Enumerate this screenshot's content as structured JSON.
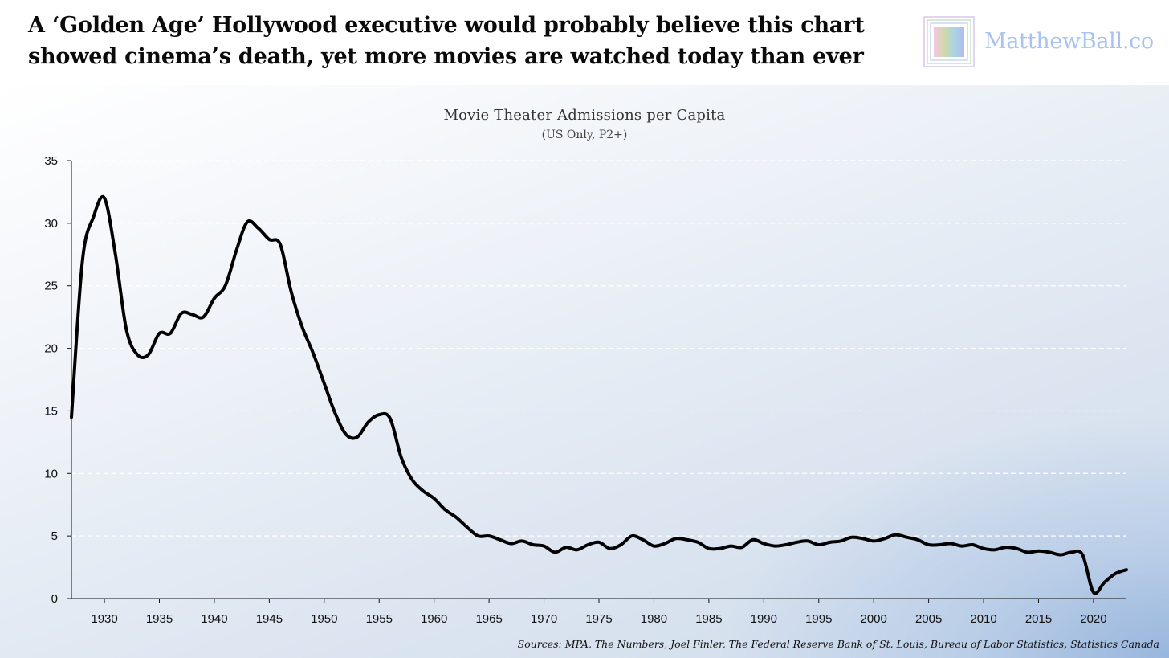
{
  "headline": {
    "line1": "A ‘Golden Age’ Hollywood executive would probably believe this chart",
    "line2": "showed cinema’s death, yet more movies are watched today than ever"
  },
  "brand": {
    "name": "MatthewBall.co",
    "color": "#aac2ee"
  },
  "sources": "Sources: MPA, The Numbers, Joel Finler, The Federal Reserve Bank of St. Louis, Bureau of Labor Statistics, Statistics Canada",
  "chart_data": {
    "type": "line",
    "title": "Movie Theater Admissions per Capita",
    "subtitle": "(US Only, P2+)",
    "xlabel": "",
    "ylabel": "",
    "xlim": [
      1927,
      2023
    ],
    "ylim": [
      0,
      35
    ],
    "x_ticks": [
      1930,
      1935,
      1940,
      1945,
      1950,
      1955,
      1960,
      1965,
      1970,
      1975,
      1980,
      1985,
      1990,
      1995,
      2000,
      2005,
      2010,
      2015,
      2020
    ],
    "y_ticks": [
      0,
      5,
      10,
      15,
      20,
      25,
      30,
      35
    ],
    "grid": "horizontal dashed",
    "line_color": "#000000",
    "series": [
      {
        "x": [
          1927,
          1928,
          1929,
          1930,
          1931,
          1932,
          1933,
          1934,
          1935,
          1936,
          1937,
          1938,
          1939,
          1940,
          1941,
          1942,
          1943,
          1944,
          1945,
          1946,
          1947,
          1948,
          1949,
          1950,
          1951,
          1952,
          1953,
          1954,
          1955,
          1956,
          1957,
          1958,
          1959,
          1960,
          1961,
          1962,
          1963,
          1964,
          1965,
          1966,
          1967,
          1968,
          1969,
          1970,
          1971,
          1972,
          1973,
          1974,
          1975,
          1976,
          1977,
          1978,
          1979,
          1980,
          1981,
          1982,
          1983,
          1984,
          1985,
          1986,
          1987,
          1988,
          1989,
          1990,
          1991,
          1992,
          1993,
          1994,
          1995,
          1996,
          1997,
          1998,
          1999,
          2000,
          2001,
          2002,
          2003,
          2004,
          2005,
          2006,
          2007,
          2008,
          2009,
          2010,
          2011,
          2012,
          2013,
          2014,
          2015,
          2016,
          2017,
          2018,
          2019,
          2020,
          2021,
          2022,
          2023
        ],
        "values": [
          14.5,
          27.0,
          30.5,
          32.0,
          27.5,
          21.5,
          19.5,
          19.5,
          21.2,
          21.2,
          22.8,
          22.7,
          22.5,
          24.0,
          25.0,
          27.8,
          30.1,
          29.6,
          28.7,
          28.3,
          24.5,
          21.7,
          19.6,
          17.2,
          14.8,
          13.1,
          12.9,
          14.1,
          14.7,
          14.4,
          11.3,
          9.5,
          8.6,
          8.0,
          7.1,
          6.5,
          5.7,
          5.0,
          5.0,
          4.7,
          4.4,
          4.6,
          4.3,
          4.2,
          3.7,
          4.1,
          3.9,
          4.3,
          4.5,
          4.0,
          4.3,
          5.0,
          4.7,
          4.2,
          4.4,
          4.8,
          4.7,
          4.5,
          4.0,
          4.0,
          4.2,
          4.1,
          4.7,
          4.4,
          4.2,
          4.3,
          4.5,
          4.6,
          4.3,
          4.5,
          4.6,
          4.9,
          4.8,
          4.6,
          4.8,
          5.1,
          4.9,
          4.7,
          4.3,
          4.3,
          4.4,
          4.2,
          4.3,
          4.0,
          3.9,
          4.1,
          4.0,
          3.7,
          3.8,
          3.7,
          3.5,
          3.7,
          3.5,
          0.5,
          1.3,
          2.0,
          2.3
        ]
      }
    ]
  }
}
